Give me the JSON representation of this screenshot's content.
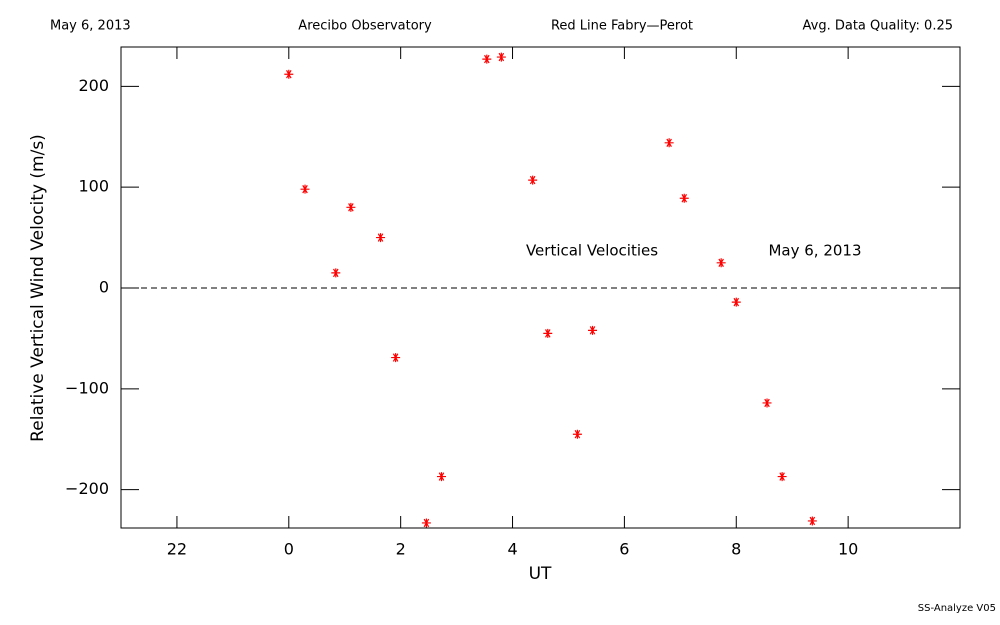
{
  "header": {
    "date": "May 6, 2013",
    "site": "Arecibo Observatory",
    "instrument": "Red Line Fabry—Perot",
    "quality": "Avg. Data Quality: 0.25"
  },
  "footer": "SS-Analyze V05",
  "chart_data": {
    "type": "scatter",
    "xlabel": "UT",
    "ylabel": "Relative Vertical Wind Velocity (m/s)",
    "annotations": [
      "Vertical Velocities",
      "May 6, 2013"
    ],
    "xlim": [
      -3,
      12
    ],
    "ylim": [
      -238,
      239
    ],
    "xticks": [
      {
        "value": -2,
        "label": "22"
      },
      0,
      2,
      4,
      6,
      8,
      10
    ],
    "yticks": [
      {
        "value": -200,
        "label": "−200"
      },
      {
        "value": -100,
        "label": "−100"
      },
      0,
      100,
      200
    ],
    "reference_line": 0,
    "series": [
      {
        "name": "Vertical Velocities",
        "color": "#ff0000",
        "x": [
          0.0,
          0.29,
          0.84,
          1.11,
          1.64,
          1.91,
          2.46,
          2.73,
          3.54,
          3.8,
          4.36,
          4.63,
          5.16,
          5.43,
          6.8,
          7.07,
          7.73,
          8.0,
          8.55,
          8.82,
          9.36
        ],
        "values": [
          212,
          98,
          15,
          80,
          50,
          -69,
          -233,
          -187,
          227,
          229,
          107,
          -45,
          -145,
          -42,
          144,
          89,
          25,
          -14,
          -114,
          -187,
          -231
        ]
      }
    ]
  }
}
